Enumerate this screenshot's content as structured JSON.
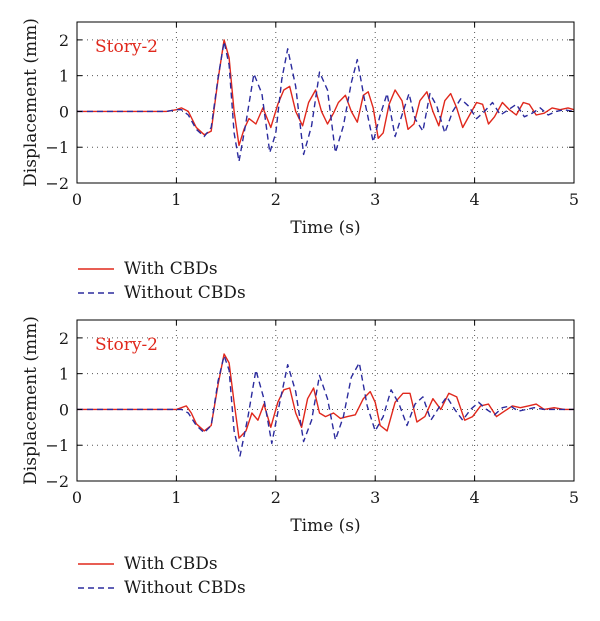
{
  "colors": {
    "with": "#e0281c",
    "without": "#2b2b9e",
    "grid": "#555555",
    "frame": "#000000"
  },
  "chart_data": [
    {
      "type": "line",
      "annotation": "Story-2",
      "xlabel": "Time (s)",
      "ylabel": "Displacement (mm)",
      "xlim": [
        0,
        5
      ],
      "ylim": [
        -2,
        2.5
      ],
      "xticks": [
        0,
        1,
        2,
        3,
        4,
        5
      ],
      "yticks": [
        -2,
        -1,
        0,
        1,
        2
      ],
      "grid": true,
      "legend": "below",
      "series": [
        {
          "name": "With CBDs",
          "style": "solid",
          "x": [
            0,
            0.9,
            1.0,
            1.05,
            1.12,
            1.2,
            1.28,
            1.35,
            1.42,
            1.48,
            1.53,
            1.58,
            1.63,
            1.68,
            1.73,
            1.8,
            1.87,
            1.95,
            2.02,
            2.08,
            2.14,
            2.2,
            2.27,
            2.33,
            2.4,
            2.46,
            2.52,
            2.58,
            2.63,
            2.7,
            2.76,
            2.82,
            2.88,
            2.93,
            2.98,
            3.03,
            3.08,
            3.14,
            3.2,
            3.27,
            3.33,
            3.39,
            3.45,
            3.52,
            3.58,
            3.64,
            3.7,
            3.76,
            3.82,
            3.88,
            3.95,
            4.02,
            4.08,
            4.14,
            4.2,
            4.28,
            4.35,
            4.42,
            4.49,
            4.55,
            4.62,
            4.7,
            4.78,
            4.86,
            4.94,
            5.0
          ],
          "y": [
            0,
            0,
            0.05,
            0.1,
            0.0,
            -0.45,
            -0.65,
            -0.55,
            0.9,
            2.0,
            1.5,
            0.0,
            -0.95,
            -0.5,
            -0.2,
            -0.35,
            0.1,
            -0.45,
            0.2,
            0.6,
            0.7,
            0.0,
            -0.4,
            0.25,
            0.6,
            0.0,
            -0.35,
            -0.05,
            0.25,
            0.45,
            0.0,
            -0.3,
            0.45,
            0.55,
            0.1,
            -0.75,
            -0.6,
            0.2,
            0.6,
            0.3,
            -0.5,
            -0.35,
            0.3,
            0.55,
            0.0,
            -0.4,
            0.3,
            0.5,
            0.1,
            -0.45,
            -0.1,
            0.25,
            0.2,
            -0.35,
            -0.15,
            0.25,
            0.05,
            -0.1,
            0.25,
            0.2,
            -0.1,
            -0.05,
            0.1,
            0.05,
            0.1,
            0.05
          ]
        },
        {
          "name": "Without CBDs",
          "style": "dashed",
          "x": [
            0,
            0.9,
            1.0,
            1.05,
            1.12,
            1.2,
            1.28,
            1.35,
            1.42,
            1.48,
            1.53,
            1.58,
            1.63,
            1.7,
            1.78,
            1.86,
            1.94,
            2.0,
            2.06,
            2.12,
            2.2,
            2.28,
            2.36,
            2.44,
            2.52,
            2.6,
            2.68,
            2.76,
            2.82,
            2.9,
            2.98,
            3.05,
            3.12,
            3.2,
            3.27,
            3.34,
            3.4,
            3.48,
            3.55,
            3.62,
            3.7,
            3.78,
            3.86,
            3.94,
            4.02,
            4.1,
            4.18,
            4.26,
            4.34,
            4.42,
            4.5,
            4.58,
            4.66,
            4.74,
            4.82,
            4.9,
            5.0
          ],
          "y": [
            0,
            0,
            0.05,
            0.05,
            -0.1,
            -0.5,
            -0.7,
            -0.45,
            0.95,
            1.95,
            1.3,
            -0.6,
            -1.4,
            -0.3,
            1.05,
            0.5,
            -1.15,
            -0.6,
            0.9,
            1.75,
            0.7,
            -1.2,
            -0.4,
            1.1,
            0.6,
            -1.15,
            -0.4,
            0.8,
            1.45,
            0.2,
            -0.85,
            -0.1,
            0.5,
            -0.7,
            -0.1,
            0.5,
            -0.2,
            -0.55,
            0.5,
            0.15,
            -0.6,
            0.0,
            0.35,
            0.15,
            -0.2,
            0.0,
            0.25,
            -0.1,
            0.05,
            0.2,
            -0.15,
            -0.05,
            0.1,
            -0.1,
            0.0,
            0.05,
            0.0
          ]
        }
      ]
    },
    {
      "type": "line",
      "annotation": "Story-2",
      "xlabel": "Time (s)",
      "ylabel": "Displacement (mm)",
      "xlim": [
        0,
        5
      ],
      "ylim": [
        -2,
        2.5
      ],
      "xticks": [
        0,
        1,
        2,
        3,
        4,
        5
      ],
      "yticks": [
        -2,
        -1,
        0,
        1,
        2
      ],
      "grid": true,
      "legend": "below",
      "series": [
        {
          "name": "With CBDs",
          "style": "solid",
          "x": [
            0,
            0.9,
            1.0,
            1.05,
            1.1,
            1.15,
            1.2,
            1.28,
            1.35,
            1.42,
            1.48,
            1.53,
            1.58,
            1.63,
            1.7,
            1.76,
            1.82,
            1.88,
            1.95,
            2.02,
            2.08,
            2.14,
            2.2,
            2.26,
            2.32,
            2.38,
            2.44,
            2.5,
            2.58,
            2.65,
            2.72,
            2.8,
            2.88,
            2.95,
            3.0,
            3.05,
            3.12,
            3.2,
            3.28,
            3.35,
            3.42,
            3.5,
            3.58,
            3.66,
            3.74,
            3.82,
            3.9,
            3.98,
            4.06,
            4.14,
            4.22,
            4.3,
            4.38,
            4.46,
            4.54,
            4.62,
            4.7,
            4.8,
            4.9,
            5.0
          ],
          "y": [
            0,
            0,
            0.0,
            0.05,
            0.1,
            -0.1,
            -0.4,
            -0.6,
            -0.45,
            0.7,
            1.55,
            1.3,
            0.2,
            -0.8,
            -0.6,
            -0.1,
            -0.3,
            0.15,
            -0.5,
            0.2,
            0.55,
            0.6,
            -0.1,
            -0.5,
            0.3,
            0.6,
            -0.1,
            -0.2,
            -0.1,
            -0.25,
            -0.2,
            -0.15,
            0.3,
            0.5,
            0.2,
            -0.45,
            -0.6,
            0.2,
            0.45,
            0.45,
            -0.35,
            -0.2,
            0.3,
            0.0,
            0.45,
            0.35,
            -0.3,
            -0.2,
            0.1,
            0.15,
            -0.2,
            -0.05,
            0.1,
            0.05,
            0.1,
            0.15,
            0.0,
            0.05,
            0.0,
            0.0
          ]
        },
        {
          "name": "Without CBDs",
          "style": "dashed",
          "x": [
            0,
            0.9,
            1.0,
            1.05,
            1.12,
            1.2,
            1.28,
            1.35,
            1.42,
            1.48,
            1.53,
            1.58,
            1.64,
            1.72,
            1.8,
            1.88,
            1.96,
            2.04,
            2.12,
            2.2,
            2.28,
            2.36,
            2.44,
            2.52,
            2.6,
            2.68,
            2.76,
            2.84,
            2.92,
            3.0,
            3.08,
            3.16,
            3.24,
            3.32,
            3.4,
            3.48,
            3.56,
            3.64,
            3.72,
            3.8,
            3.88,
            3.96,
            4.04,
            4.12,
            4.2,
            4.28,
            4.36,
            4.44,
            4.52,
            4.6,
            4.7,
            4.8,
            4.9,
            5.0
          ],
          "y": [
            0,
            0,
            0.0,
            0.0,
            -0.1,
            -0.45,
            -0.65,
            -0.45,
            0.8,
            1.5,
            1.1,
            -0.6,
            -1.3,
            -0.2,
            1.1,
            0.3,
            -0.95,
            0.2,
            1.25,
            0.5,
            -0.9,
            -0.3,
            0.95,
            0.3,
            -0.85,
            -0.2,
            0.9,
            1.3,
            0.1,
            -0.6,
            -0.2,
            0.55,
            0.15,
            -0.45,
            0.15,
            0.35,
            -0.3,
            0.05,
            0.35,
            0.0,
            -0.3,
            0.0,
            0.2,
            0.0,
            -0.15,
            0.05,
            0.1,
            -0.05,
            0.0,
            0.05,
            0.0,
            0.0,
            0.0,
            0.0
          ]
        }
      ]
    }
  ]
}
